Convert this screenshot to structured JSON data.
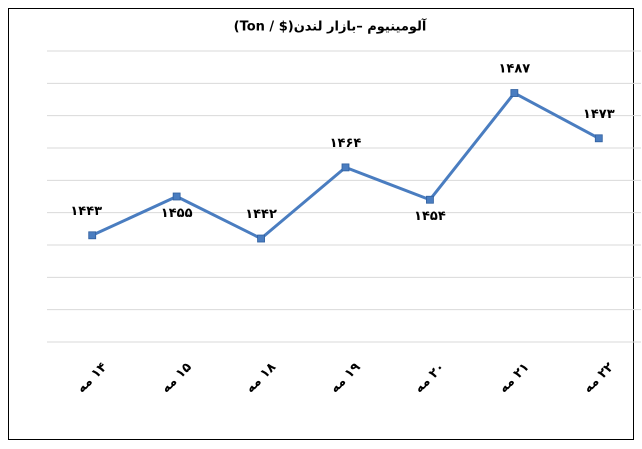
{
  "chart_data": {
    "type": "line",
    "title": "آلومینیوم –بازار لندن($ / Ton)",
    "categories": [
      "۱۴ مه",
      "۱۵ مه",
      "۱۸ مه",
      "۱۹ مه",
      "۲۰ مه",
      "۲۱ مه",
      "۲۲ مه"
    ],
    "values": [
      1443,
      1455,
      1442,
      1464,
      1454,
      1487,
      1473
    ],
    "value_labels": [
      "۱۴۴۳",
      "۱۴۵۵",
      "۱۴۴۲",
      "۱۴۶۴",
      "۱۴۵۴",
      "۱۴۸۷",
      "۱۴۷۳"
    ],
    "color": "#4a7dc0",
    "ylim": [
      1410,
      1500
    ],
    "yticks": [
      1410,
      1420,
      1430,
      1440,
      1450,
      1460,
      1470,
      1480,
      1490,
      1500
    ],
    "grid": true
  }
}
